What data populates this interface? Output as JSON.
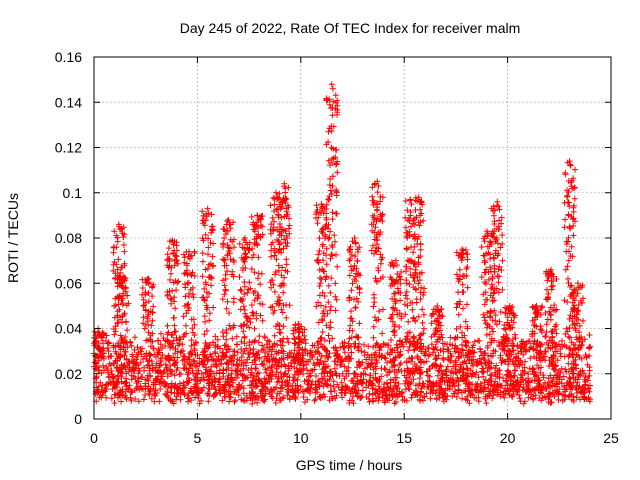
{
  "chart_data": {
    "type": "scatter",
    "title": "Day 245 of 2022, Rate Of TEC Index for receiver malm",
    "xlabel": "GPS time / hours",
    "ylabel": "ROTI / TECUs",
    "xlim": [
      0,
      25
    ],
    "ylim": [
      0,
      0.16
    ],
    "xticks": [
      0,
      5,
      10,
      15,
      20,
      25
    ],
    "xtick_labels": [
      "0",
      "5",
      "10",
      "15",
      "20",
      "25"
    ],
    "yticks": [
      0,
      0.02,
      0.04,
      0.06,
      0.08,
      0.1,
      0.12,
      0.14,
      0.16
    ],
    "ytick_labels": [
      "0",
      "0.02",
      "0.04",
      "0.06",
      "0.08",
      "0.1",
      "0.12",
      "0.14",
      "0.16"
    ],
    "grid": true,
    "marker": "plus",
    "color": "#ff0000",
    "x_data_end": 24,
    "baseline_band": [
      0.005,
      0.035
    ],
    "spikes": [
      {
        "x": 0.2,
        "y": 0.04
      },
      {
        "x": 1.2,
        "y": 0.086
      },
      {
        "x": 1.4,
        "y": 0.063
      },
      {
        "x": 2.6,
        "y": 0.062
      },
      {
        "x": 3.8,
        "y": 0.079
      },
      {
        "x": 4.6,
        "y": 0.074
      },
      {
        "x": 5.5,
        "y": 0.093
      },
      {
        "x": 6.5,
        "y": 0.088
      },
      {
        "x": 7.3,
        "y": 0.08
      },
      {
        "x": 7.9,
        "y": 0.09
      },
      {
        "x": 8.8,
        "y": 0.1
      },
      {
        "x": 9.2,
        "y": 0.104
      },
      {
        "x": 9.9,
        "y": 0.042
      },
      {
        "x": 11.0,
        "y": 0.095
      },
      {
        "x": 11.5,
        "y": 0.148
      },
      {
        "x": 12.6,
        "y": 0.08
      },
      {
        "x": 13.7,
        "y": 0.105
      },
      {
        "x": 14.6,
        "y": 0.07
      },
      {
        "x": 15.3,
        "y": 0.097
      },
      {
        "x": 15.7,
        "y": 0.098
      },
      {
        "x": 16.6,
        "y": 0.05
      },
      {
        "x": 17.8,
        "y": 0.075
      },
      {
        "x": 19.0,
        "y": 0.083
      },
      {
        "x": 19.5,
        "y": 0.096
      },
      {
        "x": 20.1,
        "y": 0.05
      },
      {
        "x": 21.4,
        "y": 0.05
      },
      {
        "x": 22.1,
        "y": 0.066
      },
      {
        "x": 23.0,
        "y": 0.114
      },
      {
        "x": 23.4,
        "y": 0.06
      }
    ]
  }
}
